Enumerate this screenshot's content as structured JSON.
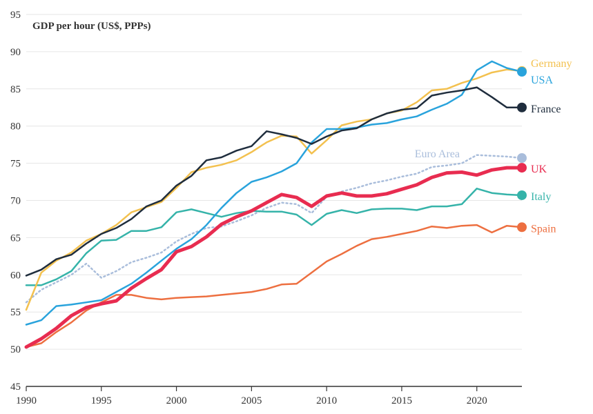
{
  "chart_data": {
    "type": "line",
    "title": "GDP per hour (US$, PPPs)",
    "xlabel": "",
    "ylabel": "",
    "xlim": [
      1990,
      2023
    ],
    "ylim": [
      45,
      95
    ],
    "y_ticks": [
      45,
      50,
      55,
      60,
      65,
      70,
      75,
      80,
      85,
      90,
      95
    ],
    "x_ticks": [
      1990,
      1995,
      2000,
      2005,
      2010,
      2015,
      2020
    ],
    "grid": "horizontal",
    "legend": "end-of-line labels",
    "x": [
      1990,
      1991,
      1992,
      1993,
      1994,
      1995,
      1996,
      1997,
      1998,
      1999,
      2000,
      2001,
      2002,
      2003,
      2004,
      2005,
      2006,
      2007,
      2008,
      2009,
      2010,
      2011,
      2012,
      2013,
      2014,
      2015,
      2016,
      2017,
      2018,
      2019,
      2020,
      2021,
      2022,
      2023
    ],
    "series": [
      {
        "name": "Germany",
        "color": "#f3c14f",
        "style": "solid",
        "values": [
          55.3,
          60.3,
          61.9,
          63.0,
          64.6,
          65.5,
          66.7,
          68.4,
          69.1,
          69.8,
          71.7,
          73.8,
          74.4,
          74.8,
          75.4,
          76.5,
          77.8,
          78.7,
          78.6,
          76.3,
          78.1,
          80.1,
          80.6,
          80.9,
          81.7,
          82.1,
          83.2,
          84.8,
          85.0,
          85.8,
          86.4,
          87.2,
          87.6,
          87.4
        ]
      },
      {
        "name": "USA",
        "color": "#29a3dc",
        "style": "solid",
        "values": [
          53.3,
          53.9,
          55.8,
          56.0,
          56.3,
          56.6,
          57.7,
          58.8,
          60.3,
          61.9,
          63.5,
          64.8,
          66.7,
          69.0,
          71.0,
          72.5,
          73.1,
          73.9,
          75.0,
          77.8,
          79.6,
          79.6,
          79.8,
          80.2,
          80.4,
          80.9,
          81.3,
          82.2,
          83.0,
          84.2,
          87.5,
          88.7,
          87.8,
          87.3
        ]
      },
      {
        "name": "France",
        "color": "#1f2d3d",
        "style": "solid",
        "values": [
          59.9,
          60.7,
          62.1,
          62.7,
          64.2,
          65.5,
          66.3,
          67.5,
          69.2,
          70.0,
          72.0,
          73.3,
          75.4,
          75.8,
          76.7,
          77.3,
          79.3,
          78.9,
          78.4,
          77.6,
          78.6,
          79.4,
          79.7,
          80.9,
          81.7,
          82.2,
          82.4,
          84.1,
          84.5,
          84.8,
          85.2,
          83.9,
          82.5,
          82.5
        ]
      },
      {
        "name": "Euro Area",
        "color": "#a9bddb",
        "style": "dotted",
        "values": [
          56.3,
          58.0,
          59.0,
          60.0,
          61.5,
          59.6,
          60.5,
          61.7,
          62.3,
          63.0,
          64.5,
          65.5,
          66.3,
          66.5,
          67.2,
          68.0,
          69.0,
          69.7,
          69.5,
          68.3,
          70.5,
          71.2,
          71.7,
          72.3,
          72.7,
          73.2,
          73.6,
          74.5,
          74.7,
          75.0,
          76.1,
          76.0,
          75.9,
          75.7
        ]
      },
      {
        "name": "UK",
        "color": "#e82c50",
        "style": "thick",
        "values": [
          50.3,
          51.4,
          52.8,
          54.5,
          55.6,
          56.1,
          56.5,
          58.2,
          59.5,
          60.7,
          63.1,
          63.8,
          65.1,
          66.8,
          67.8,
          68.6,
          69.7,
          70.8,
          70.4,
          69.2,
          70.6,
          71.0,
          70.6,
          70.6,
          70.9,
          71.5,
          72.1,
          73.1,
          73.7,
          73.8,
          73.4,
          74.1,
          74.4,
          74.4
        ]
      },
      {
        "name": "Italy",
        "color": "#35b3a9",
        "style": "solid",
        "values": [
          58.6,
          58.6,
          59.4,
          60.5,
          62.9,
          64.6,
          64.7,
          65.9,
          65.9,
          66.4,
          68.4,
          68.8,
          68.3,
          67.8,
          68.3,
          68.6,
          68.5,
          68.5,
          68.1,
          66.7,
          68.2,
          68.7,
          68.3,
          68.8,
          68.9,
          68.9,
          68.7,
          69.2,
          69.2,
          69.5,
          71.6,
          71.0,
          70.8,
          70.7
        ]
      },
      {
        "name": "Spain",
        "color": "#ed6f40",
        "style": "solid",
        "values": [
          50.3,
          50.8,
          52.3,
          53.6,
          55.2,
          56.3,
          57.3,
          57.3,
          56.9,
          56.7,
          56.9,
          57.0,
          57.1,
          57.3,
          57.5,
          57.7,
          58.1,
          58.7,
          58.8,
          60.3,
          61.8,
          62.8,
          63.9,
          64.8,
          65.1,
          65.5,
          65.9,
          66.5,
          66.3,
          66.6,
          66.7,
          65.7,
          66.6,
          66.4
        ]
      }
    ]
  }
}
